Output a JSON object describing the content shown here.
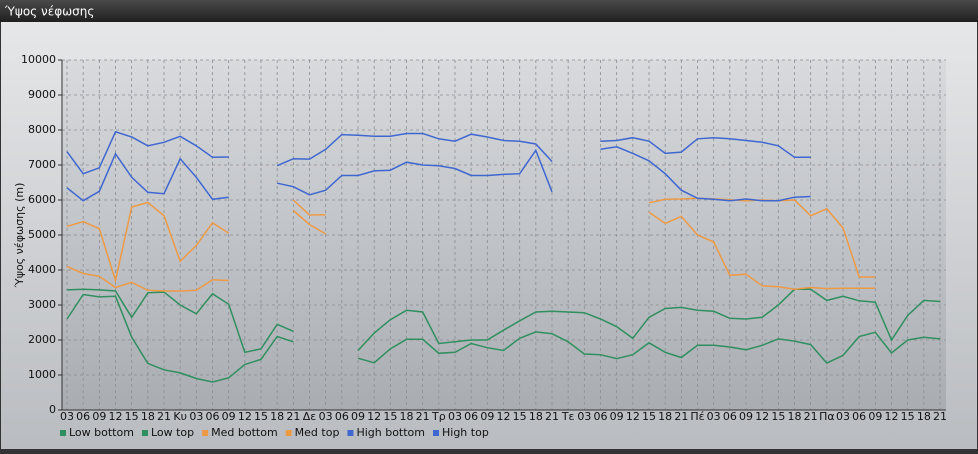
{
  "chart_data": {
    "type": "line",
    "title": "Ύψος νέφωσης",
    "ylabel": "Ύψος νέφωσης (m)",
    "categories": [
      "03",
      "06",
      "09",
      "12",
      "15",
      "18",
      "21",
      "Κυ",
      "03",
      "06",
      "09",
      "12",
      "15",
      "18",
      "21",
      "Δε",
      "03",
      "06",
      "09",
      "12",
      "15",
      "18",
      "21",
      "Τρ",
      "03",
      "06",
      "09",
      "12",
      "15",
      "18",
      "21",
      "Τε",
      "03",
      "06",
      "09",
      "12",
      "15",
      "18",
      "21",
      "Πέ",
      "03",
      "06",
      "09",
      "12",
      "15",
      "18",
      "21",
      "Πα",
      "03",
      "06",
      "09",
      "12",
      "15",
      "18",
      "21"
    ],
    "ylim": [
      0,
      10000
    ],
    "yticks": [
      0,
      1000,
      2000,
      3000,
      4000,
      5000,
      6000,
      7000,
      8000,
      9000,
      10000
    ],
    "grid": true,
    "legend": "bottom",
    "series": [
      {
        "name": "Low bottom",
        "color": "#2f8f5f",
        "values": [
          2600,
          3300,
          3230,
          3250,
          2080,
          1330,
          1150,
          1060,
          900,
          800,
          920,
          1300,
          1450,
          2100,
          1950,
          null,
          null,
          null,
          1480,
          1350,
          1750,
          2020,
          2020,
          1620,
          1650,
          1900,
          1780,
          1700,
          2050,
          2230,
          2180,
          1950,
          1600,
          1580,
          1470,
          1580,
          1920,
          1650,
          1500,
          1850,
          1850,
          1800,
          1720,
          1850,
          2030,
          1970,
          1870,
          1340,
          1560,
          2100,
          2220,
          1630,
          2000,
          2080,
          2030
        ]
      },
      {
        "name": "Low top",
        "color": "#2f8f5f",
        "values": [
          3430,
          3450,
          3430,
          3400,
          2650,
          3350,
          3370,
          3000,
          2750,
          3320,
          3020,
          1650,
          1750,
          2450,
          2250,
          null,
          null,
          null,
          1700,
          2200,
          2580,
          2850,
          2800,
          1900,
          1950,
          2000,
          2000,
          2280,
          2550,
          2800,
          2820,
          2800,
          2780,
          2600,
          2380,
          2050,
          2650,
          2900,
          2930,
          2850,
          2820,
          2620,
          2600,
          2650,
          3000,
          3450,
          3450,
          3130,
          3250,
          3120,
          3080,
          2000,
          2700,
          3130,
          3100
        ]
      },
      {
        "name": "Med bottom",
        "color": "#ee9a45",
        "values": [
          4100,
          3900,
          3820,
          3500,
          3650,
          3420,
          3400,
          3400,
          3420,
          3720,
          3700,
          null,
          null,
          null,
          5700,
          5300,
          5030,
          null,
          null,
          null,
          null,
          null,
          null,
          null,
          null,
          null,
          null,
          null,
          null,
          null,
          null,
          null,
          null,
          null,
          null,
          null,
          5650,
          5330,
          5530,
          5000,
          4800,
          3850,
          3880,
          3550,
          3520,
          3450,
          3500,
          3470,
          3480,
          3480,
          3480,
          null,
          null,
          null,
          null
        ]
      },
      {
        "name": "Med top",
        "color": "#ee9a45",
        "values": [
          5250,
          5380,
          5180,
          3700,
          5800,
          5930,
          5550,
          4250,
          4700,
          5350,
          5050,
          null,
          null,
          null,
          6000,
          5570,
          5580,
          null,
          null,
          null,
          null,
          null,
          null,
          null,
          null,
          null,
          null,
          null,
          null,
          null,
          null,
          null,
          null,
          null,
          null,
          null,
          5920,
          6020,
          6030,
          6050,
          6030,
          6010,
          5980,
          6000,
          5980,
          6000,
          5550,
          5750,
          5200,
          3800,
          3800,
          null,
          null,
          null,
          null
        ]
      },
      {
        "name": "High bottom",
        "color": "#3f67d0",
        "values": [
          6350,
          5980,
          6250,
          7320,
          6650,
          6220,
          6180,
          7180,
          6650,
          6020,
          6080,
          null,
          null,
          6480,
          6380,
          6150,
          6280,
          6700,
          6700,
          6830,
          6850,
          7080,
          7000,
          6980,
          6900,
          6700,
          6700,
          6730,
          6750,
          7420,
          6230,
          null,
          null,
          7450,
          7520,
          7330,
          7120,
          6750,
          6280,
          6050,
          6020,
          5980,
          6030,
          5980,
          5980,
          6080,
          6100,
          null,
          null,
          null,
          null,
          null,
          null,
          null,
          null
        ]
      },
      {
        "name": "High top",
        "color": "#3f67d0",
        "values": [
          7380,
          6750,
          6920,
          7950,
          7800,
          7550,
          7650,
          7820,
          7550,
          7220,
          7230,
          null,
          null,
          6980,
          7180,
          7170,
          7450,
          7870,
          7850,
          7820,
          7820,
          7900,
          7900,
          7750,
          7680,
          7880,
          7800,
          7700,
          7680,
          7600,
          7100,
          null,
          null,
          7680,
          7700,
          7780,
          7680,
          7330,
          7370,
          7750,
          7780,
          7750,
          7700,
          7650,
          7550,
          7220,
          7220,
          null,
          null,
          null,
          null,
          null,
          null,
          null,
          null
        ]
      }
    ]
  }
}
